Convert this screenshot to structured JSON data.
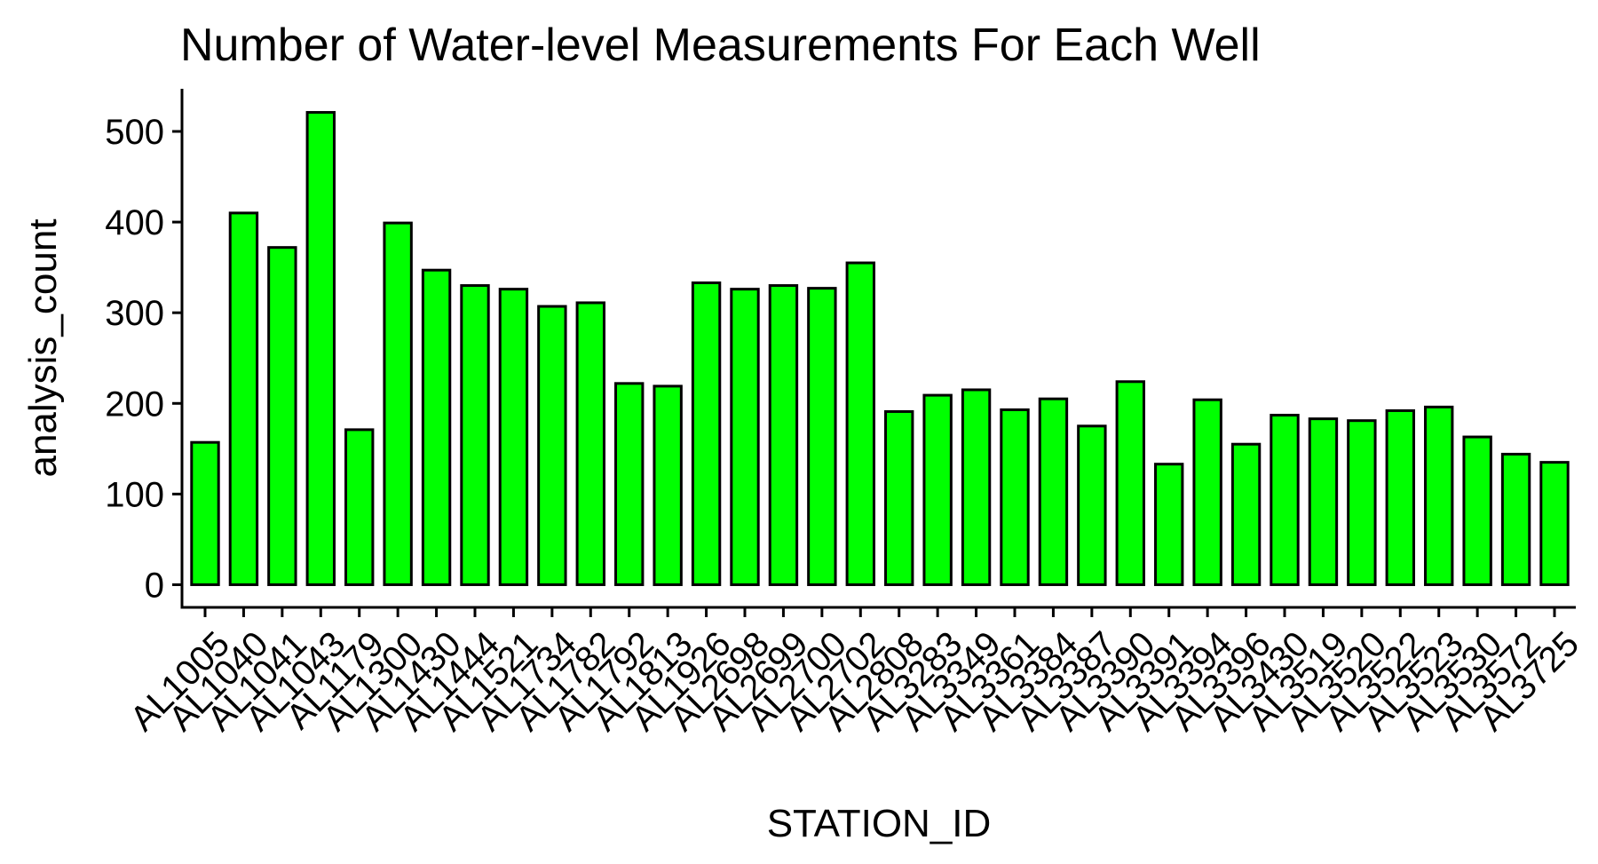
{
  "chart_data": {
    "type": "bar",
    "title": "Number of Water-level Measurements For Each Well",
    "xlabel": "STATION_ID",
    "ylabel": "analysis_count",
    "categories": [
      "AL1005",
      "AL1040",
      "AL1041",
      "AL1043",
      "AL1179",
      "AL1300",
      "AL1430",
      "AL1444",
      "AL1521",
      "AL1734",
      "AL1782",
      "AL1792",
      "AL1813",
      "AL1926",
      "AL2698",
      "AL2699",
      "AL2700",
      "AL2702",
      "AL2808",
      "AL3283",
      "AL3349",
      "AL3361",
      "AL3384",
      "AL3387",
      "AL3390",
      "AL3391",
      "AL3394",
      "AL3396",
      "AL3430",
      "AL3519",
      "AL3520",
      "AL3522",
      "AL3523",
      "AL3530",
      "AL3572",
      "AL3725"
    ],
    "values": [
      157,
      410,
      372,
      521,
      171,
      399,
      347,
      330,
      326,
      307,
      311,
      222,
      219,
      333,
      326,
      330,
      327,
      355,
      191,
      209,
      215,
      193,
      205,
      175,
      224,
      133,
      204,
      155,
      187,
      183,
      181,
      192,
      196,
      163,
      144,
      135
    ],
    "ylim": [
      -25,
      547
    ],
    "yticks": [
      0,
      100,
      200,
      300,
      400,
      500
    ],
    "yticklabels": [
      "0",
      "100",
      "200",
      "300",
      "400",
      "500"
    ],
    "grid": false,
    "legend": "none",
    "bar_fill": "#00FF00",
    "bar_stroke": "#000000"
  }
}
